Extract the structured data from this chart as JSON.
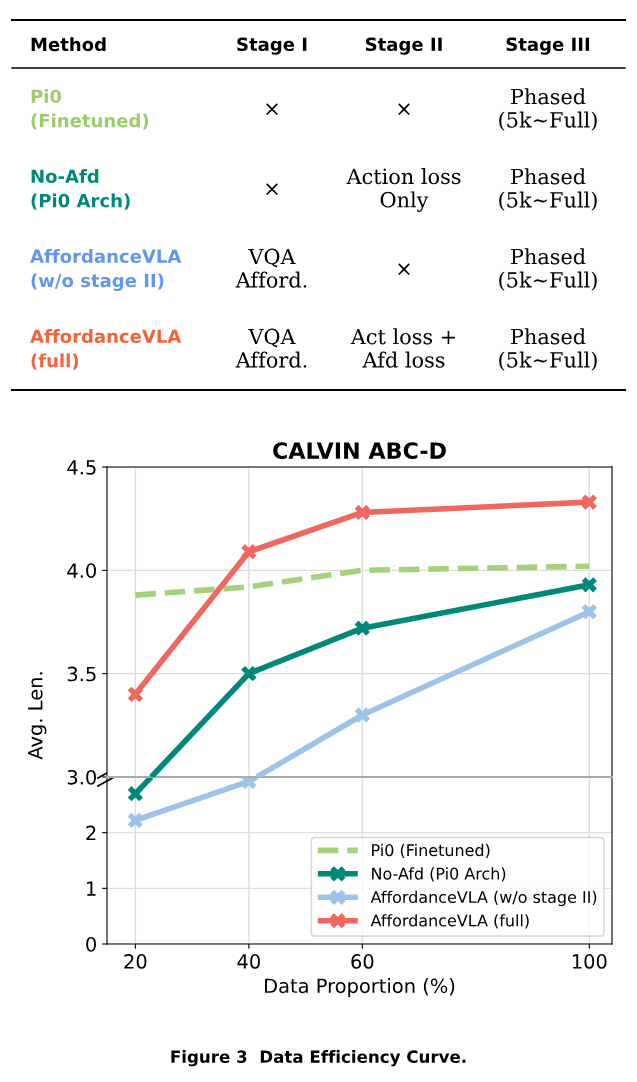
{
  "chart_data": [
    {
      "type": "other",
      "categories": [
        "Method",
        "Stage I",
        "Stage II",
        "Stage III"
      ],
      "y_categories": [
        "Pi0\n(Finetuned)",
        "No-Afd\n(Pi0 Arch)",
        "AffordanceVLA\n(w/o stage II)",
        "AffordanceVLA\n(full)"
      ],
      "colors": [
        "#9ccc65",
        "#00897b",
        "#6495ed",
        "#f4623a"
      ],
      "cell_labels": [
        [
          "×",
          "×",
          "Phased\n(5k∼Full)"
        ],
        [
          "×",
          "Action loss\nOnly",
          "Phased\n(5k∼Full)"
        ],
        [
          "VQA\nAfford.",
          "×",
          "Phased\n(5k∼Full)"
        ],
        [
          "VQA\nAfford.",
          "Act loss +\nAfd loss",
          "Phased\n(5k∼Full)"
        ]
      ]
    },
    {
      "type": "line",
      "title": "CALVIN ABC-D",
      "ylabel": "Avg. Len.",
      "x": [
        20,
        40,
        60,
        100
      ],
      "series": [
        {
          "name": "Pi0 (Finetuned)",
          "color": "#a6d07a",
          "values": [
            3.88,
            3.92,
            4.0,
            4.02
          ],
          "line_style": "dashed",
          "marker": "none"
        },
        {
          "color": "#00897b",
          "x": [
            22.8,
            40
          ],
          "values": [
            3.0,
            3.5
          ]
        },
        {
          "name": "No-Afd (Pi0 Arch)",
          "color": "#00897b",
          "x": [
            40,
            60,
            100
          ],
          "values": [
            3.5,
            3.72,
            3.93
          ],
          "marker": "cross"
        },
        {
          "color": "#9dc3e6",
          "x": [
            41.4,
            60
          ],
          "values": [
            3.0,
            3.3
          ]
        },
        {
          "name": "AffordanceVLA (w/o stage II)",
          "color": "#9dc3e6",
          "x": [
            60,
            100
          ],
          "values": [
            3.3,
            3.8
          ],
          "marker": "cross"
        },
        {
          "name": "AffordanceVLA (full)",
          "color": "#f0675f",
          "values": [
            3.4,
            4.09,
            4.28,
            4.33
          ],
          "marker": "cross"
        }
      ],
      "xlim": [
        15,
        104
      ],
      "xticks": [
        20,
        40,
        60,
        100
      ],
      "ylim": [
        3.0,
        4.5
      ],
      "yticks": [
        {
          "value": 3,
          "label": "3.0"
        },
        {
          "value": 3.5,
          "label": "3.5"
        },
        {
          "value": 4,
          "label": "4.0"
        },
        {
          "value": 4.5,
          "label": "4.5"
        }
      ],
      "tick_labels": "y",
      "grid": true,
      "legend": "bottom right"
    },
    {
      "type": "line",
      "xlabel": "Data Proportion (%)",
      "series": [
        {
          "color": "#00897b",
          "x": [
            20,
            22.8
          ],
          "values": [
            2.7,
            3.0
          ]
        },
        {
          "color": "#00897b",
          "x": [
            20
          ],
          "values": [
            2.7
          ],
          "marker": "cross"
        },
        {
          "color": "#9dc3e6",
          "x": [
            40,
            41.4
          ],
          "values": [
            2.92,
            3.0
          ]
        },
        {
          "color": "#9dc3e6",
          "x": [
            20,
            40
          ],
          "values": [
            2.22,
            2.92
          ],
          "marker": "cross"
        }
      ],
      "xlim": [
        15,
        104
      ],
      "xticks": [
        20,
        40,
        60,
        100
      ],
      "ylim": [
        0,
        3
      ],
      "yticks": [
        0,
        1,
        2
      ],
      "grid": true,
      "annotations": [
        "Figure 3  Data Efficiency Curve."
      ]
    }
  ]
}
